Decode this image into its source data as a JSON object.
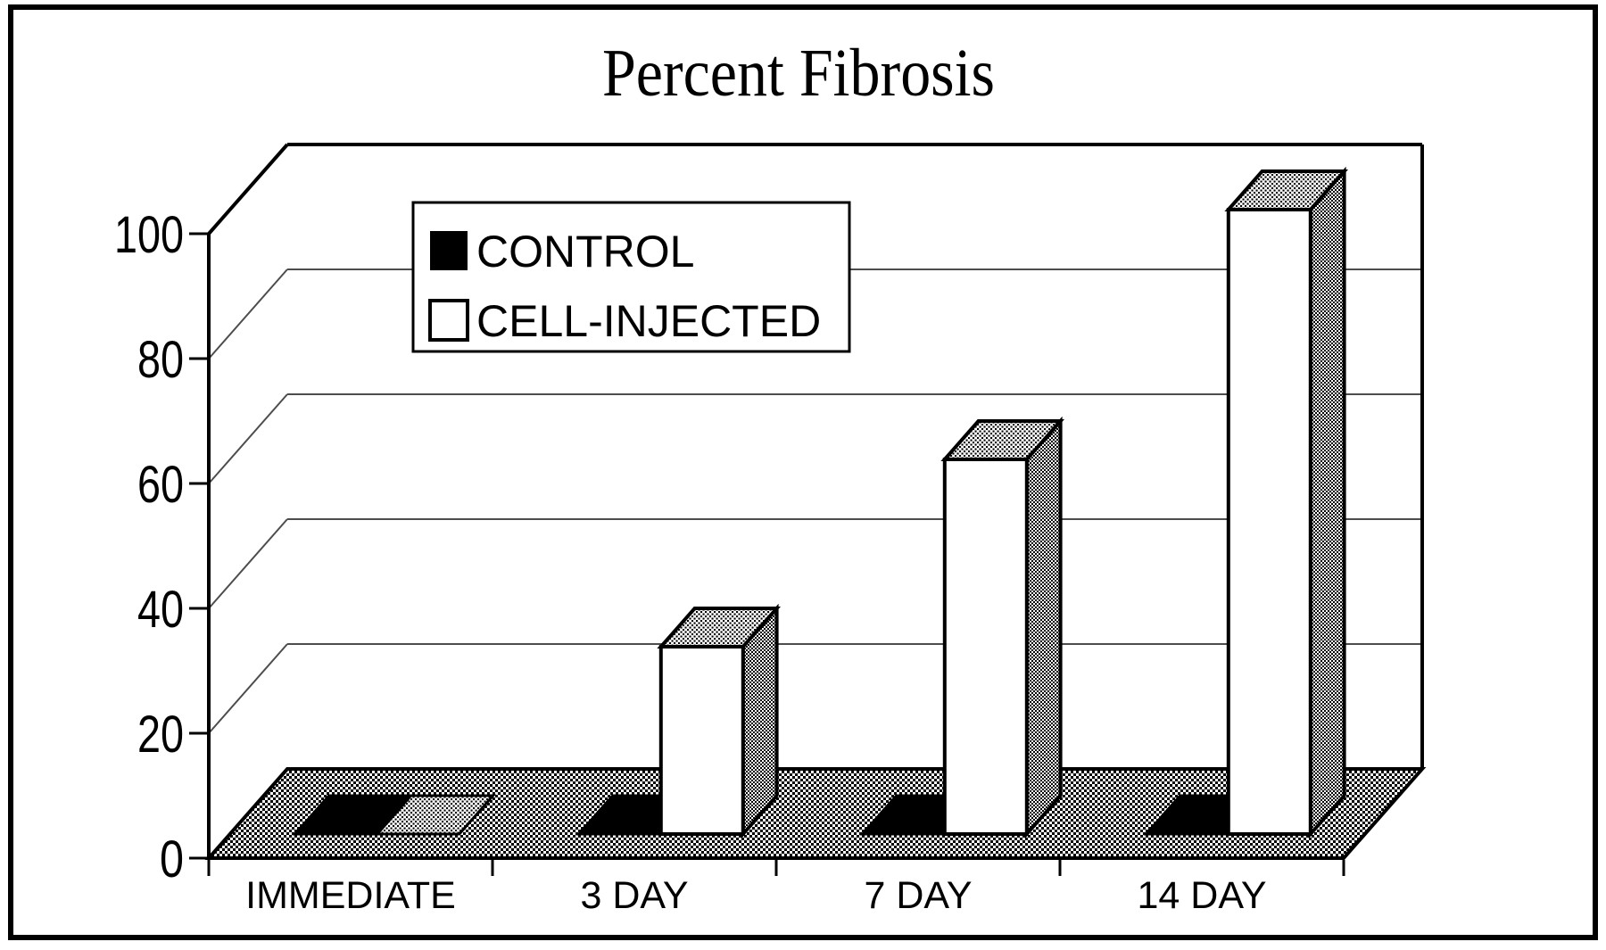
{
  "figure": {
    "title": "Percent Fibrosis"
  },
  "y_axis": {
    "tick_labels": [
      "0",
      "20",
      "40",
      "60",
      "80",
      "100"
    ]
  },
  "x_axis": {
    "labels": [
      "IMMEDIATE",
      "3 DAY",
      "7 DAY",
      "14 DAY"
    ]
  },
  "legend": {
    "items": [
      {
        "label": "CONTROL",
        "swatch": "black-filled-square"
      },
      {
        "label": "CELL-INJECTED",
        "swatch": "white-open-square"
      }
    ]
  },
  "chart_data": {
    "type": "bar",
    "view": "3d-column",
    "title": "Percent Fibrosis",
    "categories": [
      "IMMEDIATE",
      "3 DAY",
      "7 DAY",
      "14 DAY"
    ],
    "series": [
      {
        "name": "CONTROL",
        "fill": "black",
        "values": [
          0,
          0,
          0,
          0
        ]
      },
      {
        "name": "CELL-INJECTED",
        "fill": "white",
        "values": [
          0,
          30,
          60,
          100
        ]
      }
    ],
    "xlabel": "",
    "ylabel": "",
    "ylim": [
      0,
      100
    ],
    "yticks": [
      0,
      20,
      40,
      60,
      80,
      100
    ],
    "grid": true,
    "legend_position": "top-left-inside",
    "colors": {
      "ink": "#000000",
      "paper": "#ffffff",
      "gridline": "#4d4d4d"
    }
  }
}
